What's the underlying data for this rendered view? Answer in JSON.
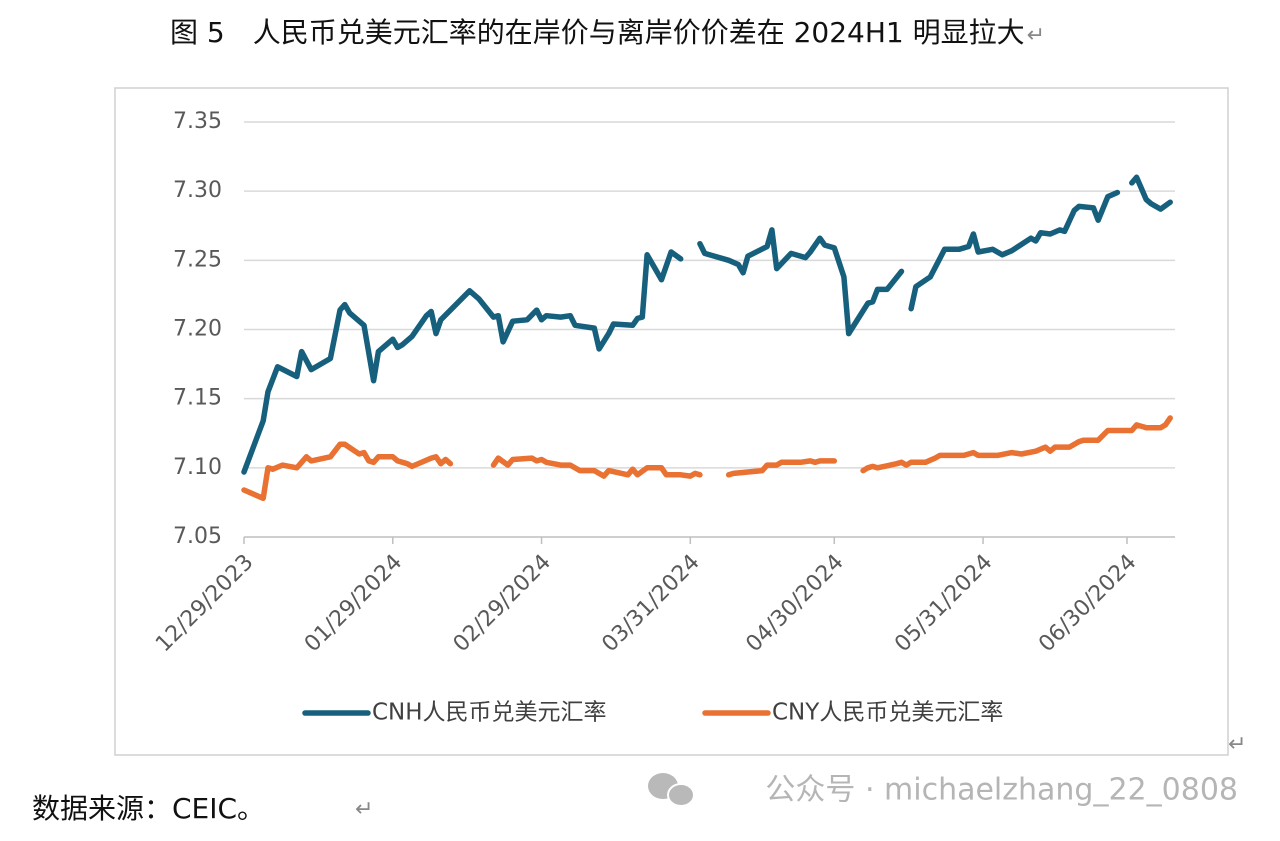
{
  "caption": "图 5　人民币兑美元汇率的在岸价与离岸价价差在 2024H1 明显拉大",
  "paragraph_mark": "↵",
  "chart_data": {
    "type": "line",
    "xlim": [
      "2023-12-29",
      "2024-07-10"
    ],
    "xticks": [
      {
        "value": "2023-12-29",
        "label": "12/29/2023"
      },
      {
        "value": "2024-01-29",
        "label": "01/29/2024"
      },
      {
        "value": "2024-02-29",
        "label": "02/29/2024"
      },
      {
        "value": "2024-03-31",
        "label": "03/31/2024"
      },
      {
        "value": "2024-04-30",
        "label": "04/30/2024"
      },
      {
        "value": "2024-05-31",
        "label": "05/31/2024"
      },
      {
        "value": "2024-06-30",
        "label": "06/30/2024"
      }
    ],
    "ylim": [
      7.05,
      7.35
    ],
    "yticks": [
      7.05,
      {
        "value": 7.1,
        "label": "7.10"
      },
      7.15,
      {
        "value": 7.2,
        "label": "7.20"
      },
      7.25,
      {
        "value": 7.3,
        "label": "7.30"
      },
      7.35
    ],
    "grid": true,
    "legend": "bottom",
    "series": [
      {
        "name": "CNH人民币兑美元汇率",
        "color": "#17607d",
        "x": [
          "2023-12-29",
          "2024-01-02",
          "2024-01-03",
          "2024-01-05",
          "2024-01-09",
          "2024-01-10",
          "2024-01-12",
          "2024-01-16",
          "2024-01-18",
          "2024-01-19",
          "2024-01-20",
          "2024-01-23",
          "2024-01-25",
          "2024-01-26",
          "2024-01-29",
          "2024-01-30",
          "2024-01-31",
          "2024-02-02",
          "2024-02-05",
          "2024-02-06",
          "2024-02-07",
          "2024-02-08",
          "2024-02-14",
          "2024-02-16",
          "2024-02-19",
          "2024-02-20",
          "2024-02-21",
          "2024-02-23",
          "2024-02-26",
          "2024-02-28",
          "2024-02-29",
          "2024-03-01",
          "2024-03-04",
          "2024-03-06",
          "2024-03-07",
          "2024-03-11",
          "2024-03-12",
          "2024-03-14",
          "2024-03-15",
          "2024-03-19",
          "2024-03-20",
          "2024-03-21",
          "2024-03-22",
          "2024-03-25",
          "2024-03-27",
          "2024-03-29",
          "2024-03-30",
          "2024-04-02",
          "2024-04-03",
          "2024-04-08",
          "2024-04-10",
          "2024-04-11",
          "2024-04-12",
          "2024-04-16",
          "2024-04-17",
          "2024-04-18",
          "2024-04-21",
          "2024-04-24",
          "2024-04-25",
          "2024-04-27",
          "2024-04-28",
          "2024-04-30",
          "2024-05-02",
          "2024-05-03",
          "2024-05-05",
          "2024-05-07",
          "2024-05-08",
          "2024-05-09",
          "2024-05-11",
          "2024-05-14",
          "2024-05-15",
          "2024-05-16",
          "2024-05-17",
          "2024-05-20",
          "2024-05-23",
          "2024-05-26",
          "2024-05-28",
          "2024-05-29",
          "2024-05-30",
          "2024-06-02",
          "2024-06-04",
          "2024-06-06",
          "2024-06-10",
          "2024-06-11",
          "2024-06-12",
          "2024-06-14",
          "2024-06-16",
          "2024-06-17",
          "2024-06-19",
          "2024-06-20",
          "2024-06-23",
          "2024-06-24",
          "2024-06-26",
          "2024-06-28",
          "2024-06-29",
          "2024-07-01",
          "2024-07-02",
          "2024-07-04",
          "2024-07-05",
          "2024-07-07",
          "2024-07-09"
        ],
        "values": [
          7.097,
          7.134,
          7.155,
          7.173,
          7.166,
          7.184,
          7.171,
          7.179,
          7.214,
          7.218,
          7.212,
          7.203,
          7.163,
          7.184,
          7.193,
          7.187,
          7.189,
          7.195,
          7.21,
          7.213,
          7.197,
          7.207,
          7.228,
          7.222,
          7.209,
          7.21,
          7.191,
          7.206,
          7.207,
          7.214,
          7.207,
          7.21,
          7.209,
          7.21,
          7.203,
          7.201,
          7.186,
          7.197,
          7.204,
          7.203,
          7.208,
          7.209,
          7.254,
          7.236,
          7.256,
          7.251,
          null,
          7.262,
          7.255,
          7.25,
          7.247,
          7.241,
          7.253,
          7.26,
          7.272,
          7.244,
          7.255,
          7.252,
          7.256,
          7.266,
          7.261,
          7.259,
          7.238,
          7.197,
          7.208,
          7.219,
          7.22,
          7.229,
          7.229,
          7.242,
          null,
          7.215,
          7.231,
          7.238,
          7.258,
          7.258,
          7.26,
          7.269,
          7.256,
          7.258,
          7.254,
          7.257,
          7.266,
          7.264,
          7.27,
          7.269,
          7.272,
          7.271,
          7.286,
          7.289,
          7.288,
          7.279,
          7.296,
          7.299,
          null,
          7.306,
          7.31,
          7.294,
          7.291,
          7.287,
          7.292
        ]
      },
      {
        "name": "CNY人民币兑美元汇率",
        "color": "#e97132",
        "x": [
          "2023-12-29",
          "2024-01-02",
          "2024-01-03",
          "2024-01-04",
          "2024-01-06",
          "2024-01-09",
          "2024-01-11",
          "2024-01-12",
          "2024-01-16",
          "2024-01-18",
          "2024-01-19",
          "2024-01-22",
          "2024-01-23",
          "2024-01-24",
          "2024-01-25",
          "2024-01-26",
          "2024-01-29",
          "2024-01-30",
          "2024-02-01",
          "2024-02-02",
          "2024-02-06",
          "2024-02-07",
          "2024-02-08",
          "2024-02-09",
          "2024-02-10",
          "2024-02-11",
          "2024-02-19",
          "2024-02-20",
          "2024-02-22",
          "2024-02-23",
          "2024-02-27",
          "2024-02-28",
          "2024-02-29",
          "2024-03-01",
          "2024-03-04",
          "2024-03-06",
          "2024-03-08",
          "2024-03-11",
          "2024-03-13",
          "2024-03-14",
          "2024-03-18",
          "2024-03-19",
          "2024-03-20",
          "2024-03-22",
          "2024-03-25",
          "2024-03-26",
          "2024-03-29",
          "2024-03-31",
          "2024-04-01",
          "2024-04-02",
          "2024-04-04",
          "2024-04-08",
          "2024-04-09",
          "2024-04-12",
          "2024-04-15",
          "2024-04-16",
          "2024-04-18",
          "2024-04-19",
          "2024-04-23",
          "2024-04-25",
          "2024-04-26",
          "2024-04-27",
          "2024-04-30",
          "2024-05-01",
          "2024-05-06",
          "2024-05-07",
          "2024-05-08",
          "2024-05-09",
          "2024-05-13",
          "2024-05-14",
          "2024-05-15",
          "2024-05-16",
          "2024-05-19",
          "2024-05-21",
          "2024-05-22",
          "2024-05-27",
          "2024-05-28",
          "2024-05-29",
          "2024-05-30",
          "2024-06-03",
          "2024-06-06",
          "2024-06-08",
          "2024-06-11",
          "2024-06-13",
          "2024-06-14",
          "2024-06-15",
          "2024-06-18",
          "2024-06-20",
          "2024-06-21",
          "2024-06-24",
          "2024-06-26",
          "2024-06-30",
          "2024-07-01",
          "2024-07-02",
          "2024-07-04",
          "2024-07-07",
          "2024-07-08",
          "2024-07-09"
        ],
        "values": [
          7.084,
          7.078,
          7.1,
          7.099,
          7.102,
          7.1,
          7.108,
          7.105,
          7.108,
          7.117,
          7.117,
          7.11,
          7.111,
          7.105,
          7.104,
          7.108,
          7.108,
          7.105,
          7.103,
          7.101,
          7.107,
          7.108,
          7.103,
          7.106,
          7.103,
          null,
          7.102,
          7.107,
          7.102,
          7.106,
          7.107,
          7.105,
          7.106,
          7.104,
          7.102,
          7.102,
          7.098,
          7.098,
          7.094,
          7.098,
          7.095,
          7.099,
          7.095,
          7.1,
          7.1,
          7.095,
          7.095,
          7.094,
          7.096,
          7.095,
          null,
          7.095,
          7.096,
          7.097,
          7.098,
          7.102,
          7.102,
          7.104,
          7.104,
          7.105,
          7.104,
          7.105,
          7.105,
          null,
          7.098,
          7.1,
          7.101,
          7.1,
          7.103,
          7.104,
          7.102,
          7.104,
          7.104,
          7.107,
          7.109,
          7.109,
          7.11,
          7.111,
          7.109,
          7.109,
          7.111,
          7.11,
          7.112,
          7.115,
          7.112,
          7.115,
          7.115,
          7.119,
          7.12,
          7.12,
          7.127,
          7.127,
          7.127,
          7.131,
          7.129,
          7.129,
          7.131,
          7.136
        ]
      }
    ]
  },
  "source": "数据来源：CEIC。",
  "watermark": "公众号 · michaelzhang_22_0808"
}
